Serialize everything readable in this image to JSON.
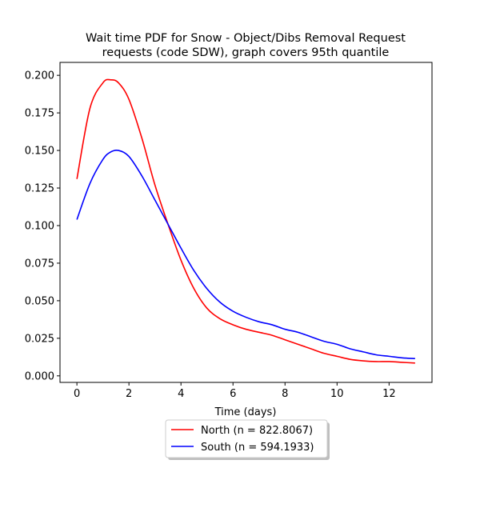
{
  "chart_data": {
    "type": "line",
    "title_line1": "Wait time PDF for Snow - Object/Dibs Removal Request",
    "title_line2": "requests (code SDW), graph covers 95th quantile",
    "xlabel": "Time (days)",
    "ylabel": "",
    "xlim": [
      -0.65,
      13.65
    ],
    "ylim": [
      -0.00436,
      0.2086
    ],
    "xticks": [
      0,
      2,
      4,
      6,
      8,
      10,
      12
    ],
    "yticks": [
      0.0,
      0.025,
      0.05,
      0.075,
      0.1,
      0.125,
      0.15,
      0.175,
      0.2
    ],
    "ytick_labels": [
      "0.000",
      "0.025",
      "0.050",
      "0.075",
      "0.100",
      "0.125",
      "0.150",
      "0.175",
      "0.200"
    ],
    "grid": false,
    "legend_position": "below",
    "series": [
      {
        "name": "North (n = 822.8067)",
        "color": "#ff0000",
        "x": [
          0,
          0.5,
          1.0,
          1.3,
          1.6,
          2.0,
          2.5,
          3.0,
          3.5,
          4.0,
          4.5,
          5.0,
          5.5,
          6.0,
          6.5,
          7.0,
          7.5,
          8.0,
          8.5,
          9.0,
          9.5,
          10.0,
          10.5,
          11.0,
          11.5,
          12.0,
          12.5,
          13.0
        ],
        "y": [
          0.131,
          0.178,
          0.195,
          0.197,
          0.195,
          0.184,
          0.158,
          0.127,
          0.101,
          0.077,
          0.058,
          0.045,
          0.038,
          0.034,
          0.031,
          0.029,
          0.027,
          0.024,
          0.021,
          0.018,
          0.015,
          0.013,
          0.011,
          0.01,
          0.0095,
          0.0095,
          0.009,
          0.0085
        ]
      },
      {
        "name": "South (n = 594.1933)",
        "color": "#0000ff",
        "x": [
          0,
          0.5,
          1.0,
          1.3,
          1.6,
          2.0,
          2.5,
          3.0,
          3.5,
          4.0,
          4.5,
          5.0,
          5.5,
          6.0,
          6.5,
          7.0,
          7.5,
          8.0,
          8.5,
          9.0,
          9.5,
          10.0,
          10.5,
          11.0,
          11.5,
          12.0,
          12.5,
          13.0
        ],
        "y": [
          0.104,
          0.128,
          0.144,
          0.149,
          0.15,
          0.146,
          0.133,
          0.117,
          0.101,
          0.085,
          0.07,
          0.058,
          0.049,
          0.043,
          0.039,
          0.036,
          0.034,
          0.031,
          0.029,
          0.026,
          0.023,
          0.021,
          0.018,
          0.016,
          0.014,
          0.013,
          0.012,
          0.0115
        ]
      }
    ]
  }
}
